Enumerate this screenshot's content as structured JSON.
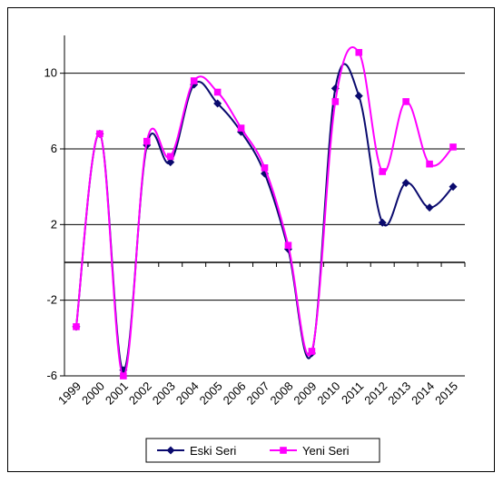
{
  "chart_data": {
    "type": "line",
    "title": "",
    "xlabel": "",
    "ylabel": "",
    "x": [
      "1999",
      "2000",
      "2001",
      "2002",
      "2003",
      "2004",
      "2005",
      "2006",
      "2007",
      "2008",
      "2009",
      "2010",
      "2011",
      "2012",
      "2013",
      "2014",
      "2015"
    ],
    "ylim": [
      -6,
      12
    ],
    "yticks": [
      -6,
      -2,
      2,
      6,
      10
    ],
    "grid": true,
    "series": [
      {
        "name": "Eski Seri",
        "color": "#0a0a6e",
        "marker": "diamond",
        "values": [
          -3.4,
          6.8,
          -5.7,
          6.2,
          5.3,
          9.4,
          8.4,
          6.9,
          4.7,
          0.7,
          -4.8,
          9.2,
          8.8,
          2.1,
          4.2,
          2.9,
          4.0
        ]
      },
      {
        "name": "Yeni Seri",
        "color": "#ff00ff",
        "marker": "square",
        "values": [
          -3.4,
          6.8,
          -6.0,
          6.4,
          5.6,
          9.6,
          9.0,
          7.1,
          5.0,
          0.9,
          -4.7,
          8.5,
          11.1,
          4.8,
          8.5,
          5.2,
          6.1
        ]
      }
    ],
    "legend": {
      "placement": "bottom"
    }
  }
}
